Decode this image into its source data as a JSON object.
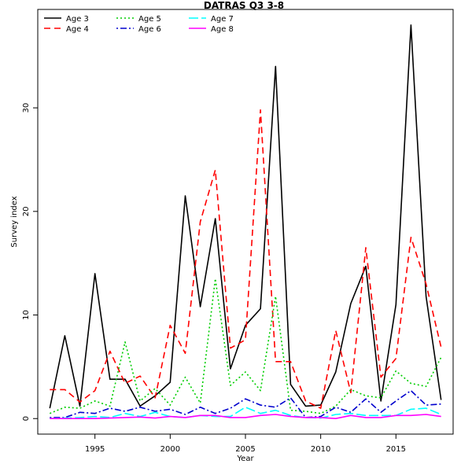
{
  "chart_data": {
    "type": "line",
    "title": "DATRAS Q3 3-8",
    "xlabel": "Year",
    "ylabel": "Survey index",
    "xlim": [
      1991.2,
      2018.8
    ],
    "ylim": [
      -1.5,
      39.5
    ],
    "x_ticks": [
      1995,
      2000,
      2005,
      2010,
      2015
    ],
    "y_ticks": [
      0,
      10,
      20,
      30
    ],
    "legend_position": "top-left",
    "x": [
      1992,
      1993,
      1994,
      1995,
      1996,
      1997,
      1998,
      1999,
      2000,
      2001,
      2002,
      2003,
      2004,
      2005,
      2006,
      2007,
      2008,
      2009,
      2010,
      2011,
      2012,
      2013,
      2014,
      2015,
      2016,
      2017,
      2018
    ],
    "series": [
      {
        "name": "Age 3",
        "color": "#000000",
        "dash": "solid",
        "values": [
          1.0,
          8.0,
          1.2,
          14.0,
          3.8,
          3.8,
          1.2,
          2.2,
          3.5,
          21.5,
          10.8,
          19.3,
          4.8,
          9.0,
          10.6,
          34.0,
          3.3,
          1.2,
          1.3,
          4.5,
          11.1,
          14.7,
          1.7,
          11.0,
          38.0,
          11.8,
          1.8
        ]
      },
      {
        "name": "Age 4",
        "color": "#ff0000",
        "dash": "dashed",
        "values": [
          2.8,
          2.8,
          1.6,
          2.7,
          6.5,
          3.4,
          4.1,
          2.0,
          9.0,
          6.3,
          19.0,
          24.0,
          6.8,
          7.6,
          29.8,
          5.5,
          5.5,
          1.7,
          1.0,
          8.5,
          2.5,
          16.5,
          4.0,
          5.8,
          17.5,
          13.0,
          6.9
        ]
      },
      {
        "name": "Age 5",
        "color": "#00cd00",
        "dash": "dotted",
        "values": [
          0.5,
          1.1,
          1.0,
          1.7,
          1.2,
          7.4,
          1.7,
          2.9,
          1.3,
          4.0,
          1.5,
          13.5,
          3.2,
          4.5,
          2.7,
          11.8,
          0.8,
          0.7,
          0.5,
          1.2,
          2.8,
          2.2,
          2.0,
          4.6,
          3.4,
          3.1,
          5.9
        ]
      },
      {
        "name": "Age 6",
        "color": "#0000cd",
        "dash": "dotdash",
        "values": [
          0.1,
          0.1,
          0.6,
          0.5,
          1.0,
          0.7,
          1.1,
          0.7,
          0.9,
          0.4,
          1.1,
          0.5,
          1.0,
          1.9,
          1.3,
          1.1,
          2.0,
          0.1,
          0.2,
          1.1,
          0.6,
          1.9,
          0.6,
          1.7,
          2.7,
          1.3,
          1.4
        ]
      },
      {
        "name": "Age 7",
        "color": "#00ffff",
        "dash": "longdash",
        "values": [
          0.0,
          0.05,
          0.1,
          0.2,
          0.1,
          0.5,
          0.2,
          0.6,
          0.2,
          0.1,
          0.3,
          0.2,
          0.2,
          1.1,
          0.5,
          0.8,
          0.3,
          0.1,
          0.05,
          0.4,
          0.5,
          0.3,
          0.3,
          0.3,
          0.9,
          1.0,
          0.4
        ]
      },
      {
        "name": "Age 8",
        "color": "#ff00ff",
        "dash": "solid",
        "values": [
          0.0,
          0.0,
          0.0,
          0.0,
          0.05,
          0.1,
          0.15,
          0.05,
          0.2,
          0.1,
          0.3,
          0.3,
          0.1,
          0.1,
          0.3,
          0.4,
          0.2,
          0.1,
          0.1,
          0.0,
          0.3,
          0.1,
          0.1,
          0.3,
          0.3,
          0.4,
          0.2
        ]
      }
    ]
  }
}
